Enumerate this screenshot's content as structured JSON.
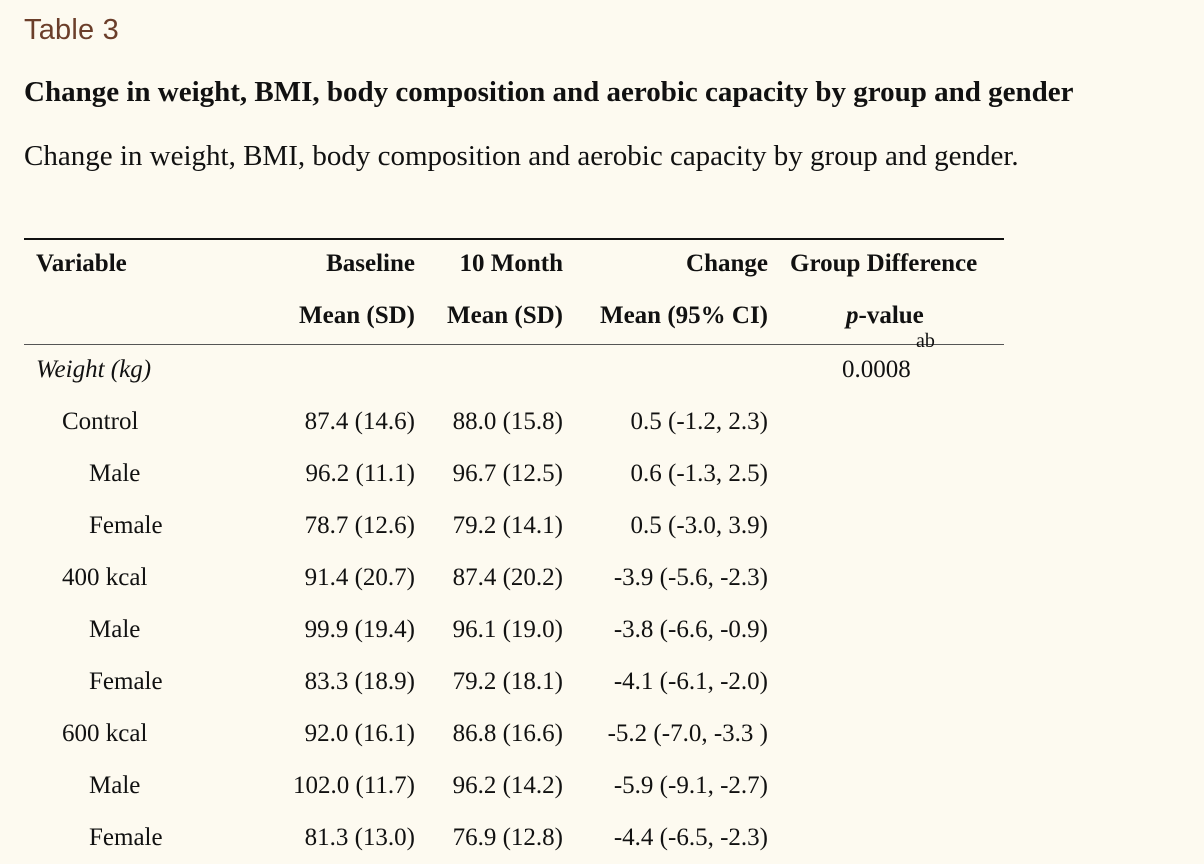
{
  "table_label": "Table 3",
  "title": "Change in weight, BMI, body composition and aerobic capacity by group and gender",
  "caption": "Change in weight, BMI, body composition and aerobic capacity by group and gender.",
  "header": {
    "row1": {
      "variable": "Variable",
      "baseline": "Baseline",
      "month10": "10 Month",
      "change": "Change",
      "group_diff": "Group Difference"
    },
    "row2": {
      "baseline": "Mean (SD)",
      "month10": "Mean (SD)",
      "change": "Mean (95% CI)",
      "p_italic": "p",
      "p_rest": "-value",
      "superscript": "ab"
    }
  },
  "rows": [
    {
      "variable": "Weight (kg)",
      "baseline": "",
      "month10": "",
      "change": "",
      "p": "0.0008"
    },
    {
      "variable": "Control",
      "baseline": "87.4 (14.6)",
      "month10": "88.0 (15.8)",
      "change": "0.5 (-1.2, 2.3)",
      "p": ""
    },
    {
      "variable": "Male",
      "baseline": "96.2 (11.1)",
      "month10": "96.7 (12.5)",
      "change": "0.6 (-1.3, 2.5)",
      "p": ""
    },
    {
      "variable": "Female",
      "baseline": "78.7 (12.6)",
      "month10": "79.2 (14.1)",
      "change": "0.5 (-3.0, 3.9)",
      "p": ""
    },
    {
      "variable": "400 kcal",
      "baseline": "91.4 (20.7)",
      "month10": "87.4 (20.2)",
      "change": "-3.9 (-5.6, -2.3)",
      "p": ""
    },
    {
      "variable": "Male",
      "baseline": "99.9 (19.4)",
      "month10": "96.1 (19.0)",
      "change": "-3.8 (-6.6, -0.9)",
      "p": ""
    },
    {
      "variable": "Female",
      "baseline": "83.3 (18.9)",
      "month10": "79.2 (18.1)",
      "change": "-4.1 (-6.1, -2.0)",
      "p": ""
    },
    {
      "variable": "600 kcal",
      "baseline": "92.0 (16.1)",
      "month10": "86.8 (16.6)",
      "change": "-5.2 (-7.0, -3.3 )",
      "p": ""
    },
    {
      "variable": "Male",
      "baseline": "102.0 (11.7)",
      "month10": "96.2 (14.2)",
      "change": "-5.9 (-9.1, -2.7)",
      "p": ""
    },
    {
      "variable": "Female",
      "baseline": "81.3 (13.0)",
      "month10": "76.9 (12.8)",
      "change": "-4.4 (-6.5, -2.3)",
      "p": ""
    }
  ]
}
